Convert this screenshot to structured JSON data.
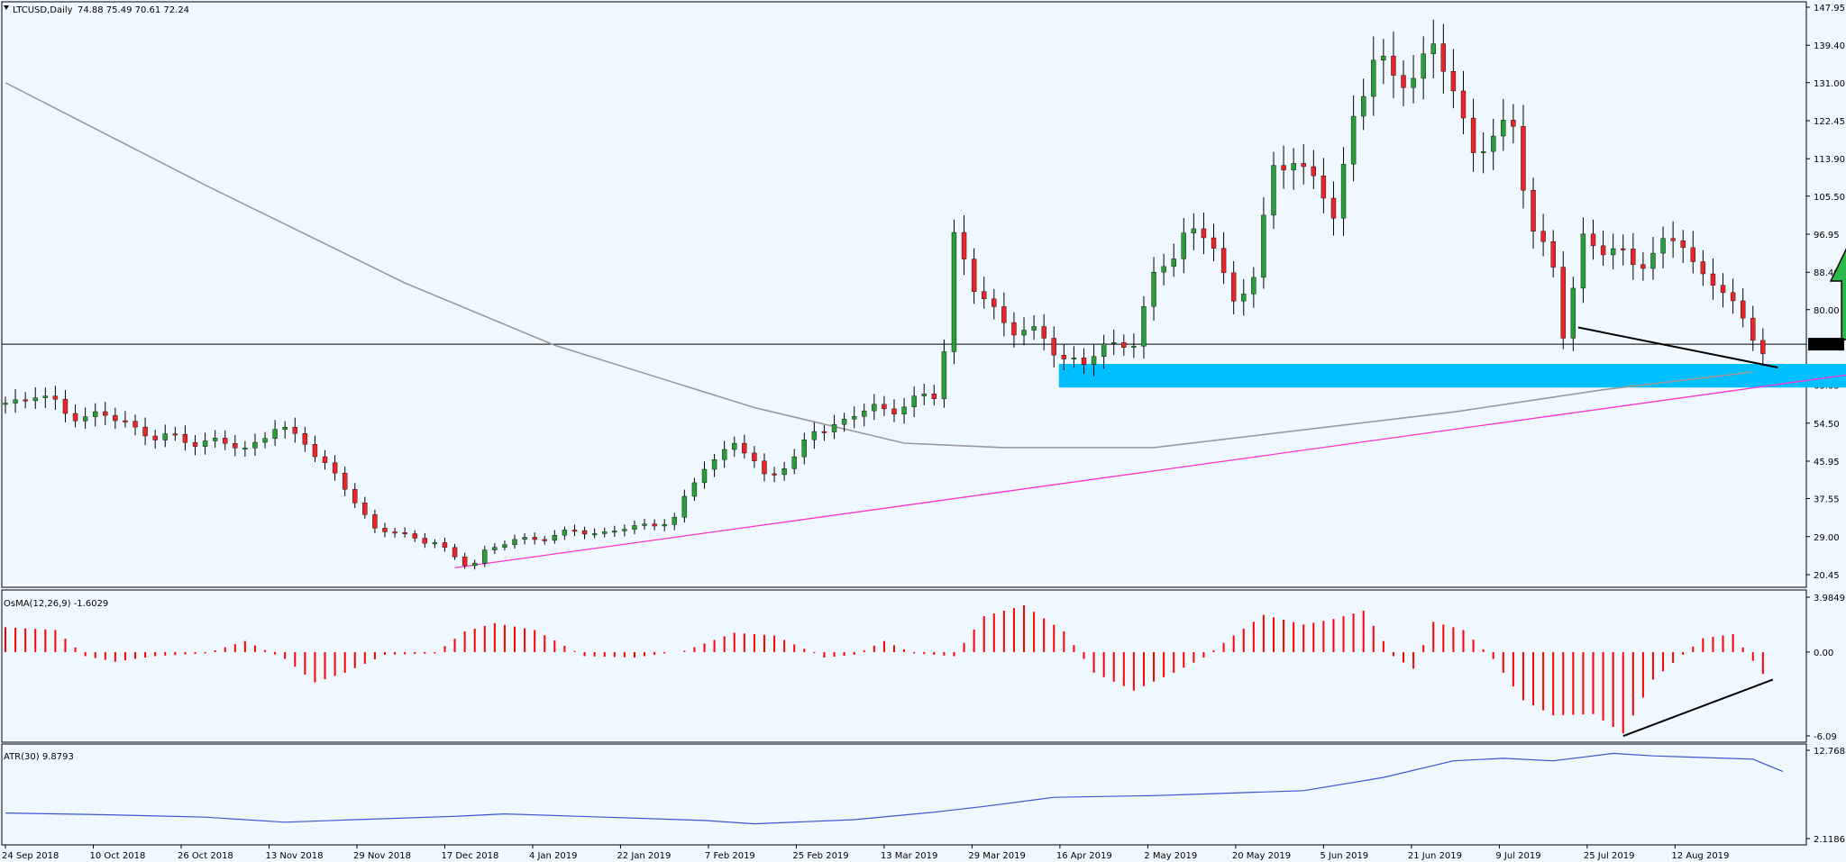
{
  "main_header": {
    "symbol": "LTCUSD,Daily",
    "ohlc": "74.88 75.49 70.61 72.24"
  },
  "current_price": "72.24",
  "osma_header": "OsMA(12,26,9) -1.6029",
  "atr_header": "ATR(30) 9.8793",
  "colors": {
    "background": "#f0f8ff",
    "bull": "#2a9d3a",
    "bear": "#e8262a",
    "ma": "#999999",
    "trendline": "#ff33cc",
    "zone": "#00bfff",
    "arrow": "#2db84a",
    "osma": "#ff0000",
    "atr": "#3a55d0"
  },
  "chart_data": [
    {
      "type": "candlestick",
      "title": "LTCUSD,Daily",
      "y_ticks": [
        "147.95",
        "139.40",
        "131.00",
        "122.45",
        "113.90",
        "105.50",
        "96.95",
        "88.40",
        "80.00",
        "72.24",
        "63.05",
        "54.50",
        "45.95",
        "37.55",
        "29.00",
        "20.45"
      ],
      "ylim": [
        20.45,
        147.95
      ],
      "x_ticks": [
        "24 Sep 2018",
        "10 Oct 2018",
        "26 Oct 2018",
        "13 Nov 2018",
        "29 Nov 2018",
        "17 Dec 2018",
        "4 Jan 2019",
        "22 Jan 2019",
        "7 Feb 2019",
        "25 Feb 2019",
        "13 Mar 2019",
        "29 Mar 2019",
        "16 Apr 2019",
        "2 May 2019",
        "20 May 2019",
        "5 Jun 2019",
        "21 Jun 2019",
        "9 Jul 2019",
        "25 Jul 2019",
        "12 Aug 2019"
      ],
      "close_series": [
        [
          0,
          59
        ],
        [
          6,
          61
        ],
        [
          12,
          57
        ],
        [
          18,
          56
        ],
        [
          24,
          55
        ],
        [
          30,
          51
        ],
        [
          36,
          51
        ],
        [
          42,
          50
        ],
        [
          48,
          49
        ],
        [
          54,
          53
        ],
        [
          60,
          51
        ],
        [
          64,
          45
        ],
        [
          70,
          37
        ],
        [
          74,
          31
        ],
        [
          80,
          29
        ],
        [
          86,
          28
        ],
        [
          90,
          24
        ],
        [
          93,
          22
        ],
        [
          96,
          26
        ],
        [
          102,
          28
        ],
        [
          108,
          29
        ],
        [
          114,
          30
        ],
        [
          120,
          30
        ],
        [
          126,
          31
        ],
        [
          130,
          32
        ],
        [
          134,
          33
        ],
        [
          140,
          45
        ],
        [
          146,
          50
        ],
        [
          152,
          43
        ],
        [
          158,
          46
        ],
        [
          162,
          53
        ],
        [
          168,
          55
        ],
        [
          174,
          58
        ],
        [
          178,
          58
        ],
        [
          182,
          59
        ],
        [
          186,
          61
        ],
        [
          188,
          72
        ],
        [
          190,
          97
        ],
        [
          194,
          84
        ],
        [
          198,
          80
        ],
        [
          202,
          76
        ],
        [
          208,
          73
        ],
        [
          212,
          70
        ],
        [
          216,
          67
        ],
        [
          220,
          72
        ],
        [
          226,
          73
        ],
        [
          230,
          86
        ],
        [
          236,
          98
        ],
        [
          242,
          94
        ],
        [
          246,
          82
        ],
        [
          250,
          88
        ],
        [
          254,
          110
        ],
        [
          258,
          116
        ],
        [
          262,
          108
        ],
        [
          266,
          101
        ],
        [
          270,
          124
        ],
        [
          274,
          136
        ],
        [
          278,
          131
        ],
        [
          282,
          135
        ],
        [
          286,
          137
        ],
        [
          290,
          130
        ],
        [
          294,
          116
        ],
        [
          298,
          118
        ],
        [
          302,
          121
        ],
        [
          306,
          99
        ],
        [
          310,
          88
        ],
        [
          312,
          74
        ],
        [
          316,
          97
        ],
        [
          320,
          93
        ],
        [
          326,
          91
        ],
        [
          330,
          93
        ],
        [
          336,
          95
        ],
        [
          340,
          88
        ],
        [
          344,
          84
        ],
        [
          348,
          77
        ],
        [
          352,
          72
        ]
      ],
      "moving_average": [
        [
          0,
          131
        ],
        [
          40,
          108
        ],
        [
          80,
          86
        ],
        [
          110,
          72
        ],
        [
          150,
          58
        ],
        [
          180,
          50
        ],
        [
          200,
          49
        ],
        [
          230,
          49
        ],
        [
          260,
          53
        ],
        [
          290,
          57
        ],
        [
          320,
          62
        ],
        [
          350,
          66
        ]
      ],
      "horizontal_level": 72.24,
      "trendline": [
        [
          90,
          22
        ],
        [
          386,
          68
        ]
      ],
      "support_zone": [
        62.5,
        67.8
      ],
      "price_divergence_line": [
        [
          315,
          76
        ],
        [
          355,
          67
        ]
      ],
      "arrow": "up"
    },
    {
      "type": "bar",
      "title": "OsMA(12,26,9) -1.6029",
      "y_ticks": [
        "3.9849",
        "0.00",
        "-6.09"
      ],
      "ylim": [
        -6.09,
        3.9849
      ],
      "values": [
        [
          0,
          1.8
        ],
        [
          10,
          1.6
        ],
        [
          16,
          -0.3
        ],
        [
          22,
          -0.7
        ],
        [
          30,
          -0.3
        ],
        [
          40,
          -0.1
        ],
        [
          48,
          0.8
        ],
        [
          56,
          -0.5
        ],
        [
          62,
          -2.2
        ],
        [
          68,
          -1.5
        ],
        [
          76,
          -0.2
        ],
        [
          86,
          -0.1
        ],
        [
          92,
          1.5
        ],
        [
          98,
          2.1
        ],
        [
          106,
          1.6
        ],
        [
          116,
          -0.3
        ],
        [
          126,
          -0.4
        ],
        [
          136,
          0.1
        ],
        [
          146,
          1.4
        ],
        [
          154,
          1.2
        ],
        [
          164,
          -0.4
        ],
        [
          170,
          -0.2
        ],
        [
          176,
          0.8
        ],
        [
          182,
          -0.1
        ],
        [
          190,
          -0.3
        ],
        [
          196,
          2.6
        ],
        [
          204,
          3.4
        ],
        [
          212,
          1.5
        ],
        [
          218,
          -1.5
        ],
        [
          226,
          -2.8
        ],
        [
          234,
          -1.5
        ],
        [
          240,
          -0.4
        ],
        [
          246,
          1.2
        ],
        [
          252,
          2.7
        ],
        [
          260,
          2.0
        ],
        [
          266,
          2.4
        ],
        [
          272,
          3.0
        ],
        [
          278,
          -0.3
        ],
        [
          282,
          -1.2
        ],
        [
          286,
          2.2
        ],
        [
          292,
          1.6
        ],
        [
          298,
          -0.5
        ],
        [
          304,
          -3.5
        ],
        [
          310,
          -4.6
        ],
        [
          318,
          -4.5
        ],
        [
          324,
          -5.9
        ],
        [
          330,
          -2.0
        ],
        [
          336,
          -0.2
        ],
        [
          340,
          1.0
        ],
        [
          346,
          1.3
        ],
        [
          352,
          -1.6
        ]
      ],
      "divergence_line": [
        [
          324,
          -6.1
        ],
        [
          354,
          -2.0
        ]
      ]
    },
    {
      "type": "line",
      "title": "ATR(30) 9.8793",
      "y_ticks": [
        "12.7688",
        "2.1186"
      ],
      "ylim": [
        2.1186,
        12.7688
      ],
      "values": [
        [
          0,
          5.2
        ],
        [
          20,
          5.0
        ],
        [
          40,
          4.7
        ],
        [
          56,
          4.1
        ],
        [
          70,
          4.4
        ],
        [
          90,
          4.8
        ],
        [
          100,
          5.1
        ],
        [
          120,
          4.7
        ],
        [
          140,
          4.3
        ],
        [
          150,
          3.9
        ],
        [
          170,
          4.4
        ],
        [
          186,
          5.3
        ],
        [
          196,
          6.0
        ],
        [
          210,
          7.1
        ],
        [
          230,
          7.3
        ],
        [
          240,
          7.5
        ],
        [
          260,
          7.9
        ],
        [
          276,
          9.5
        ],
        [
          290,
          11.5
        ],
        [
          300,
          11.8
        ],
        [
          310,
          11.5
        ],
        [
          322,
          12.4
        ],
        [
          330,
          12.1
        ],
        [
          340,
          11.9
        ],
        [
          350,
          11.7
        ],
        [
          356,
          10.2
        ]
      ]
    }
  ]
}
